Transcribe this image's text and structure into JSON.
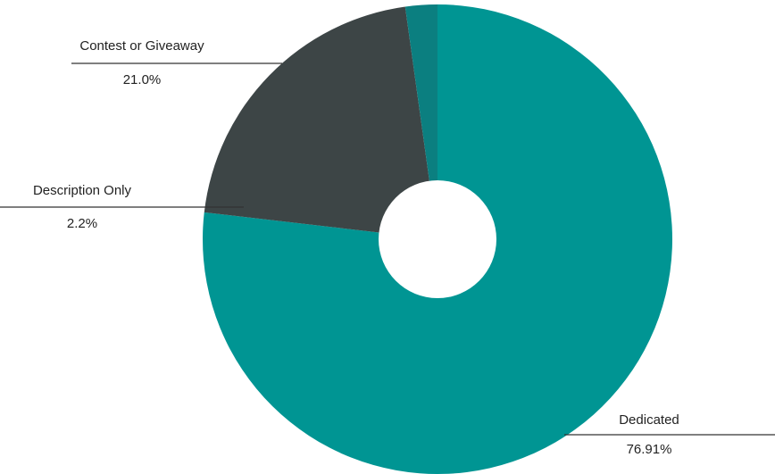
{
  "chart_data": {
    "type": "pie",
    "variant": "donut",
    "title": "",
    "slices": [
      {
        "label": "Dedicated",
        "value": 76.91,
        "value_label": "76.91%",
        "color": "#009593"
      },
      {
        "label": "Contest or Giveaway",
        "value": 21.0,
        "value_label": "21.0%",
        "color": "#3d4546"
      },
      {
        "label": "Description Only",
        "value": 2.2,
        "value_label": "2.2%",
        "color": "#0b7f80"
      }
    ],
    "legend": "none",
    "hole_color": "#ffffff",
    "leader_line_color": "#333333"
  }
}
